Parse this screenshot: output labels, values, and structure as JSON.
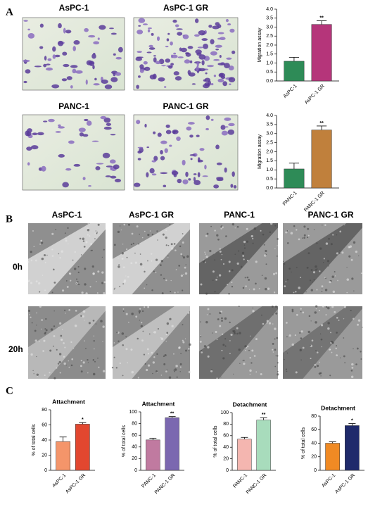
{
  "panel_labels": [
    "A",
    "B",
    "C"
  ],
  "panel_a_images": [
    "AsPC-1",
    "AsPC-1 GR",
    "PANC-1",
    "PANC-1 GR"
  ],
  "panel_b_columns": [
    "AsPC-1",
    "AsPC-1 GR",
    "PANC-1",
    "PANC-1 GR"
  ],
  "panel_b_rows": [
    "0h",
    "20h"
  ],
  "chart_data": [
    {
      "type": "bar",
      "ylabel": "Migration assay",
      "categories": [
        "AsPC-1",
        "AsPC-1 GR"
      ],
      "values": [
        1.1,
        3.15
      ],
      "errors": [
        0.22,
        0.2
      ],
      "colors": [
        "#2e8b57",
        "#b5357a"
      ],
      "significance": [
        null,
        "**"
      ],
      "ylim": [
        0,
        4
      ],
      "yticks": [
        {
          "value": 0,
          "label": "0.0"
        },
        0.5,
        {
          "value": 1,
          "label": "1.0"
        },
        1.5,
        {
          "value": 2,
          "label": "2.0"
        },
        2.5,
        {
          "value": 3,
          "label": "3.0"
        },
        3.5,
        {
          "value": 4,
          "label": "4.0"
        }
      ]
    },
    {
      "type": "bar",
      "ylabel": "Migration assay",
      "categories": [
        "PANC-1",
        "PANC-1 GR"
      ],
      "values": [
        1.05,
        3.2
      ],
      "errors": [
        0.32,
        0.22
      ],
      "colors": [
        "#2e8b57",
        "#c0803c"
      ],
      "significance": [
        null,
        "**"
      ],
      "ylim": [
        0,
        4
      ],
      "yticks": [
        {
          "value": 0,
          "label": "0.0"
        },
        0.5,
        {
          "value": 1,
          "label": "1.0"
        },
        1.5,
        {
          "value": 2,
          "label": "2.0"
        },
        2.5,
        {
          "value": 3,
          "label": "3.0"
        },
        3.5,
        {
          "value": 4,
          "label": "4.0"
        }
      ]
    },
    {
      "type": "bar",
      "title": "Attachment",
      "ylabel": "% of total cells",
      "categories": [
        "AsPC-1",
        "AsPC-1 GR"
      ],
      "values": [
        38,
        61
      ],
      "errors": [
        6,
        2
      ],
      "colors": [
        "#f4956a",
        "#e2472f"
      ],
      "significance": [
        null,
        "*"
      ],
      "ylim": [
        0,
        80
      ],
      "yticks": [
        0,
        20,
        40,
        60,
        80
      ]
    },
    {
      "type": "bar",
      "title": "Attachment",
      "ylabel": "% of total cells",
      "categories": [
        "PANC-1",
        "PANC-1 GR"
      ],
      "values": [
        52,
        90
      ],
      "errors": [
        3,
        2
      ],
      "colors": [
        "#c07aa0",
        "#7b68b0"
      ],
      "significance": [
        null,
        "**"
      ],
      "ylim": [
        0,
        100
      ],
      "yticks": [
        0,
        20,
        40,
        60,
        80,
        100
      ]
    },
    {
      "type": "bar",
      "title": "Detachment",
      "ylabel": "% of total cells",
      "categories": [
        "PANC-1",
        "PANC-1 GR"
      ],
      "values": [
        54,
        87
      ],
      "errors": [
        3,
        4
      ],
      "colors": [
        "#f4b6b0",
        "#a8dcbc"
      ],
      "significance": [
        null,
        "**"
      ],
      "ylim": [
        0,
        100
      ],
      "yticks": [
        0,
        20,
        40,
        60,
        80,
        100
      ]
    },
    {
      "type": "bar",
      "title": "Detachment",
      "ylabel": "% of total cells",
      "categories": [
        "AsPC-1",
        "AsPC-1 GR"
      ],
      "values": [
        40,
        66
      ],
      "errors": [
        2,
        3
      ],
      "colors": [
        "#f08a24",
        "#1f2a6b"
      ],
      "significance": [
        null,
        "*"
      ],
      "ylim": [
        0,
        80
      ],
      "yticks": [
        0,
        20,
        40,
        60,
        80
      ]
    }
  ]
}
